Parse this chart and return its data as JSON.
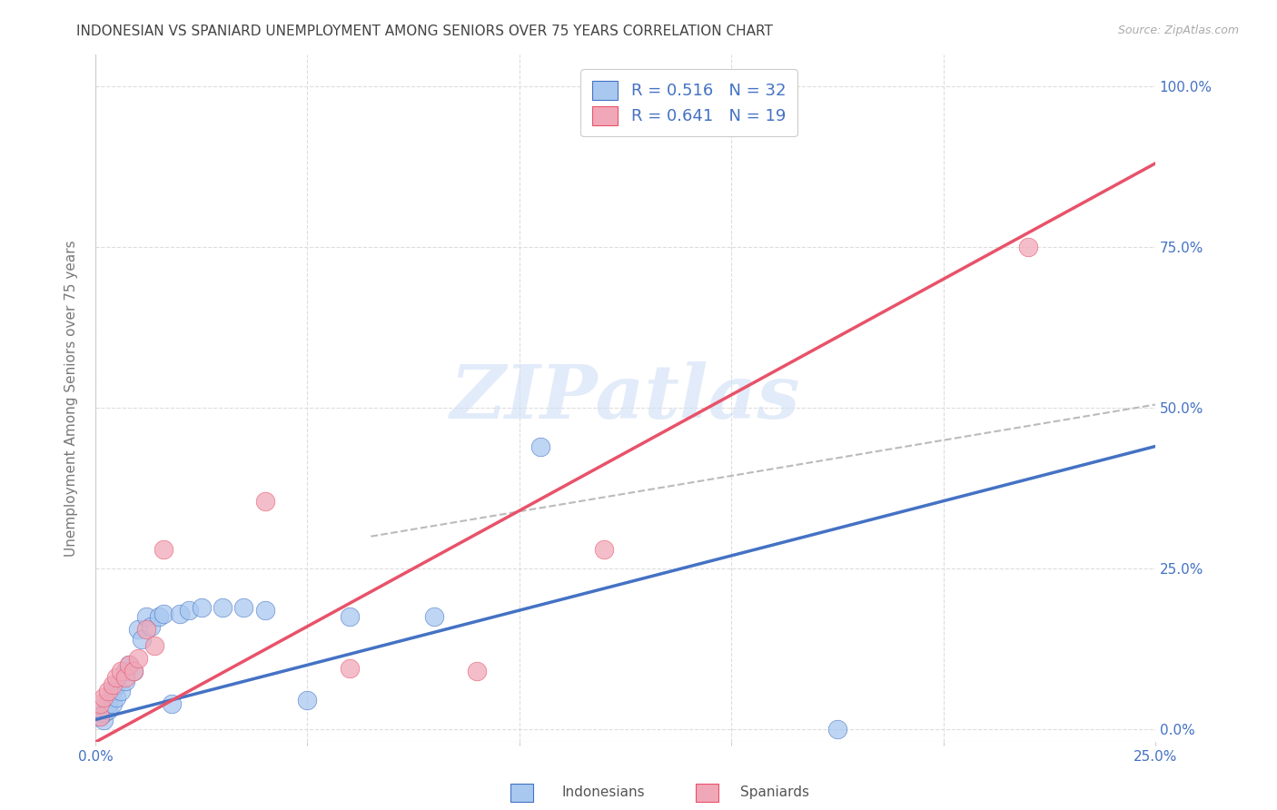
{
  "title": "INDONESIAN VS SPANIARD UNEMPLOYMENT AMONG SENIORS OVER 75 YEARS CORRELATION CHART",
  "source": "Source: ZipAtlas.com",
  "ylabel": "Unemployment Among Seniors over 75 years",
  "ytick_vals": [
    0.0,
    0.25,
    0.5,
    0.75,
    1.0
  ],
  "ytick_labels": [
    "0.0%",
    "25.0%",
    "50.0%",
    "75.0%",
    "100.0%"
  ],
  "xtick_vals": [
    0.0,
    0.05,
    0.1,
    0.15,
    0.2,
    0.25
  ],
  "xtick_labels_show": [
    "0.0%",
    "",
    "",
    "",
    "",
    "25.0%"
  ],
  "xlim": [
    0.0,
    0.25
  ],
  "ylim": [
    -0.02,
    1.05
  ],
  "indo_R": "0.516",
  "indo_N": "32",
  "span_R": "0.641",
  "span_N": "19",
  "indo_scatter_color": "#A8C8F0",
  "span_scatter_color": "#F0A8B8",
  "indo_line_color": "#4472C4",
  "span_line_color": "#E8526A",
  "diag_color": "#BBBBBB",
  "text_color": "#4472C4",
  "title_color": "#444444",
  "bg_color": "#FFFFFF",
  "watermark_text": "ZIPatlas",
  "watermark_color": "#D0DFF5",
  "indo_line_x0": 0.0,
  "indo_line_y0": 0.015,
  "indo_line_x1": 0.25,
  "indo_line_y1": 0.44,
  "span_line_x0": 0.0,
  "span_line_y0": -0.02,
  "span_line_x1": 0.25,
  "span_line_y1": 0.88,
  "diag_line_x0": 0.065,
  "diag_line_y0": 0.3,
  "diag_line_x1": 0.25,
  "diag_line_y1": 0.505,
  "indo_x": [
    0.001,
    0.002,
    0.002,
    0.003,
    0.003,
    0.004,
    0.004,
    0.005,
    0.005,
    0.006,
    0.007,
    0.007,
    0.008,
    0.009,
    0.01,
    0.011,
    0.012,
    0.013,
    0.015,
    0.016,
    0.018,
    0.02,
    0.022,
    0.025,
    0.03,
    0.035,
    0.04,
    0.05,
    0.06,
    0.08,
    0.105,
    0.175
  ],
  "indo_y": [
    0.02,
    0.015,
    0.025,
    0.03,
    0.04,
    0.04,
    0.06,
    0.05,
    0.07,
    0.06,
    0.075,
    0.09,
    0.1,
    0.09,
    0.155,
    0.14,
    0.175,
    0.16,
    0.175,
    0.18,
    0.04,
    0.18,
    0.185,
    0.19,
    0.19,
    0.19,
    0.185,
    0.045,
    0.175,
    0.175,
    0.44,
    0.0
  ],
  "span_x": [
    0.001,
    0.001,
    0.002,
    0.003,
    0.004,
    0.005,
    0.006,
    0.007,
    0.008,
    0.009,
    0.01,
    0.012,
    0.014,
    0.016,
    0.04,
    0.06,
    0.09,
    0.12,
    0.22
  ],
  "span_y": [
    0.02,
    0.04,
    0.05,
    0.06,
    0.07,
    0.08,
    0.09,
    0.08,
    0.1,
    0.09,
    0.11,
    0.155,
    0.13,
    0.28,
    0.355,
    0.095,
    0.09,
    0.28,
    0.75
  ]
}
